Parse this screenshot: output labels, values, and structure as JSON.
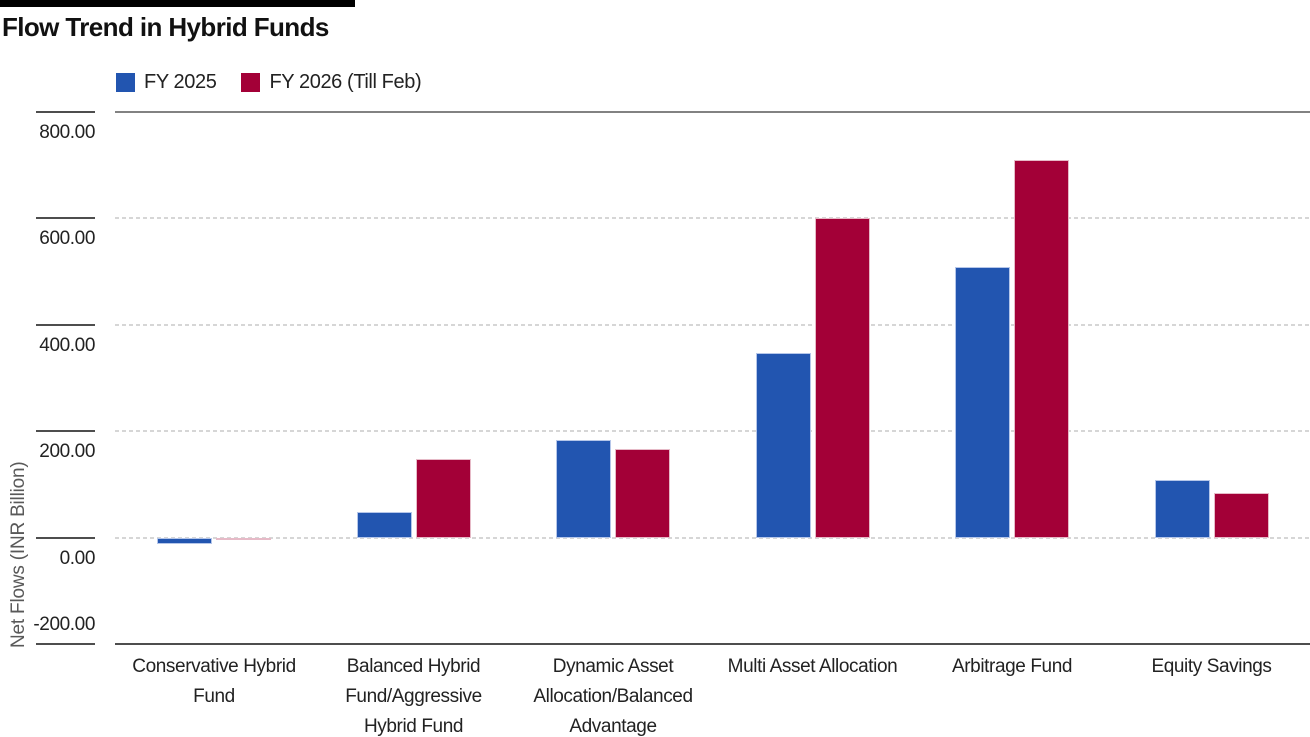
{
  "chart_data": {
    "type": "bar",
    "title": "Flow Trend in Hybrid Funds",
    "ylabel": "Net Flows (INR Billion)",
    "ylim": [
      -200,
      800
    ],
    "yticks": [
      800,
      600,
      400,
      200,
      0,
      -200
    ],
    "ytick_decimals": 2,
    "grid": "horizontal-dashed",
    "legend_position": "top-left",
    "accent_bar_color": "#000000",
    "categories": [
      "Conservative Hybrid Fund",
      "Balanced Hybrid Fund/Aggressive Hybrid Fund",
      "Dynamic Asset Allocation/Balanced Advantage",
      "Multi Asset Allocation",
      "Arbitrage Fund",
      "Equity Savings"
    ],
    "category_label_lines": [
      [
        "Conservative Hybrid",
        "Fund"
      ],
      [
        "Balanced Hybrid",
        "Fund/Aggressive",
        "Hybrid Fund"
      ],
      [
        "Dynamic Asset",
        "Allocation/Balanced",
        "Advantage"
      ],
      [
        "Multi Asset Allocation"
      ],
      [
        "Arbitrage Fund"
      ],
      [
        "Equity Savings"
      ]
    ],
    "series": [
      {
        "name": "FY 2025",
        "color": "#2255b0",
        "border_color": "#b5c6e9",
        "values": [
          -12,
          48,
          184,
          347,
          508,
          108
        ]
      },
      {
        "name": "FY 2026 (Till Feb)",
        "color": "#a30037",
        "border_color": "#e6bac7",
        "values": [
          -4,
          147,
          167,
          600,
          710,
          83
        ]
      }
    ]
  }
}
